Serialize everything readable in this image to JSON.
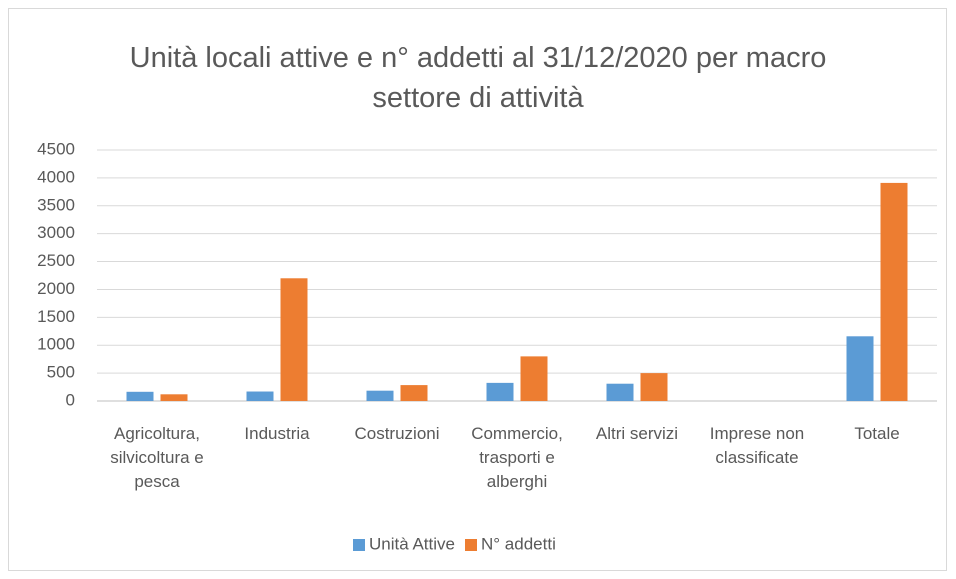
{
  "chart_data": {
    "type": "bar",
    "title": "Unità locali attive e n° addetti al 31/12/2020 per macro settore di attività",
    "categories": [
      "Agricoltura, silvicoltura e pesca",
      "Industria",
      "Costruzioni",
      "Commercio, trasporti e alberghi",
      "Altri servizi",
      "Imprese non classificate",
      "Totale"
    ],
    "series": [
      {
        "name": "Unità Attive",
        "color": "#5b9bd5",
        "values": [
          165,
          170,
          185,
          325,
          310,
          0,
          1160
        ]
      },
      {
        "name": "N° addetti",
        "color": "#ed7d31",
        "values": [
          120,
          2200,
          285,
          800,
          500,
          0,
          3910
        ]
      }
    ],
    "ylim": [
      0,
      4500
    ],
    "yticks": [
      0,
      500,
      1000,
      1500,
      2000,
      2500,
      3000,
      3500,
      4000,
      4500
    ],
    "grid": true,
    "legend": "bottom"
  }
}
